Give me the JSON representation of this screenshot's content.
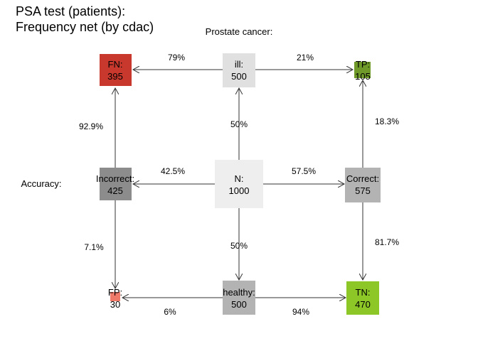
{
  "title_line1": "PSA test (patients):",
  "title_line2": "Frequency net (by cdac)",
  "row_label_top": "Prostate cancer:",
  "row_label_mid": "Accuracy:",
  "colors": {
    "N": "#eeeeee",
    "ill": "#e0e0e0",
    "healthy": "#b3b3b3",
    "correct": "#b3b3b3",
    "incorrect": "#8c8c8c",
    "TP": "#6f9a2a",
    "FN": "#c8382c",
    "TN": "#8cc727",
    "FP": "#f07a6a",
    "line": "#333333"
  },
  "nodes": {
    "N": {
      "label": "N:",
      "value": "1000"
    },
    "ill": {
      "label": "ill:",
      "value": "500"
    },
    "healthy": {
      "label": "healthy:",
      "value": "500"
    },
    "correct": {
      "label": "Correct:",
      "value": "575"
    },
    "incorrect": {
      "label": "Incorrect:",
      "value": "425"
    },
    "TP": {
      "label": "TP:",
      "value": "105"
    },
    "FN": {
      "label": "FN:",
      "value": "395"
    },
    "TN": {
      "label": "TN:",
      "value": "470"
    },
    "FP": {
      "label": "FP:",
      "value": "30"
    }
  },
  "edges": {
    "ill_FN": "79%",
    "ill_TP": "21%",
    "N_ill": "50%",
    "N_healthy": "50%",
    "N_incorrect": "42.5%",
    "N_correct": "57.5%",
    "incorrect_FN": "92.9%",
    "incorrect_FP": "7.1%",
    "correct_TP": "18.3%",
    "correct_TN": "81.7%",
    "healthy_FP": "6%",
    "healthy_TN": "94%"
  }
}
